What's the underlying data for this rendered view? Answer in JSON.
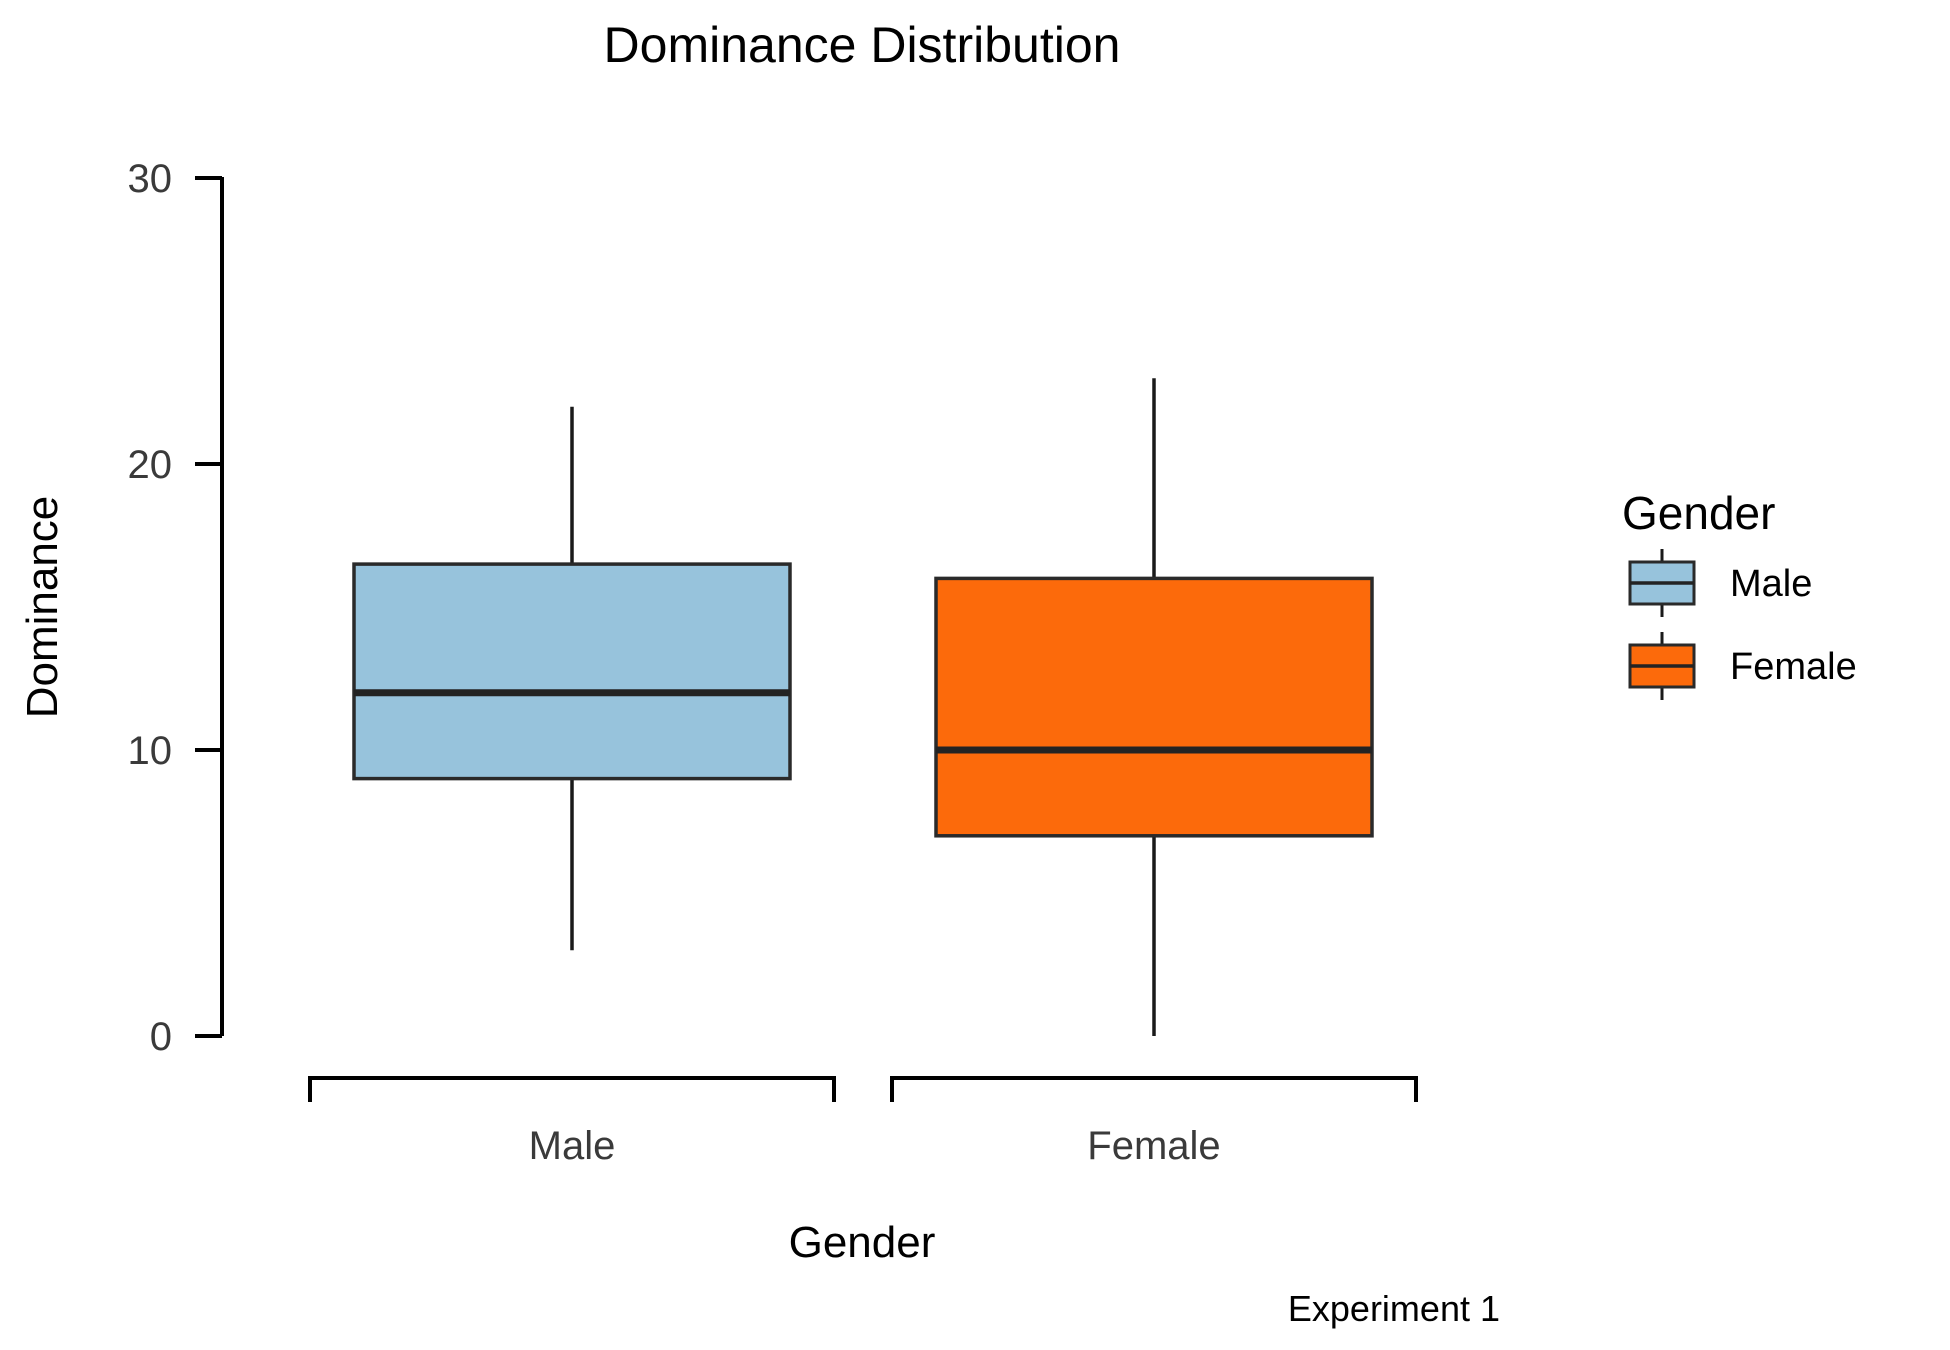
{
  "chart_data": {
    "type": "boxplot",
    "title": "Dominance Distribution",
    "xlabel": "Gender",
    "ylabel": "Dominance",
    "caption": "Experiment 1",
    "ylim": [
      0,
      30
    ],
    "yticks": [
      0,
      10,
      20,
      30
    ],
    "categories": [
      "Male",
      "Female"
    ],
    "boxes": [
      {
        "category": "Male",
        "min": 3,
        "q1": 9,
        "median": 12,
        "q3": 16.5,
        "max": 22,
        "color": "#97C3DC"
      },
      {
        "category": "Female",
        "min": 0,
        "q1": 7,
        "median": 10,
        "q3": 16,
        "max": 23,
        "color": "#FC6A0B"
      }
    ],
    "legend": {
      "title": "Gender",
      "position": "right",
      "items": [
        {
          "label": "Male",
          "color": "#97C3DC"
        },
        {
          "label": "Female",
          "color": "#FC6A0B"
        }
      ]
    },
    "grid": false
  }
}
